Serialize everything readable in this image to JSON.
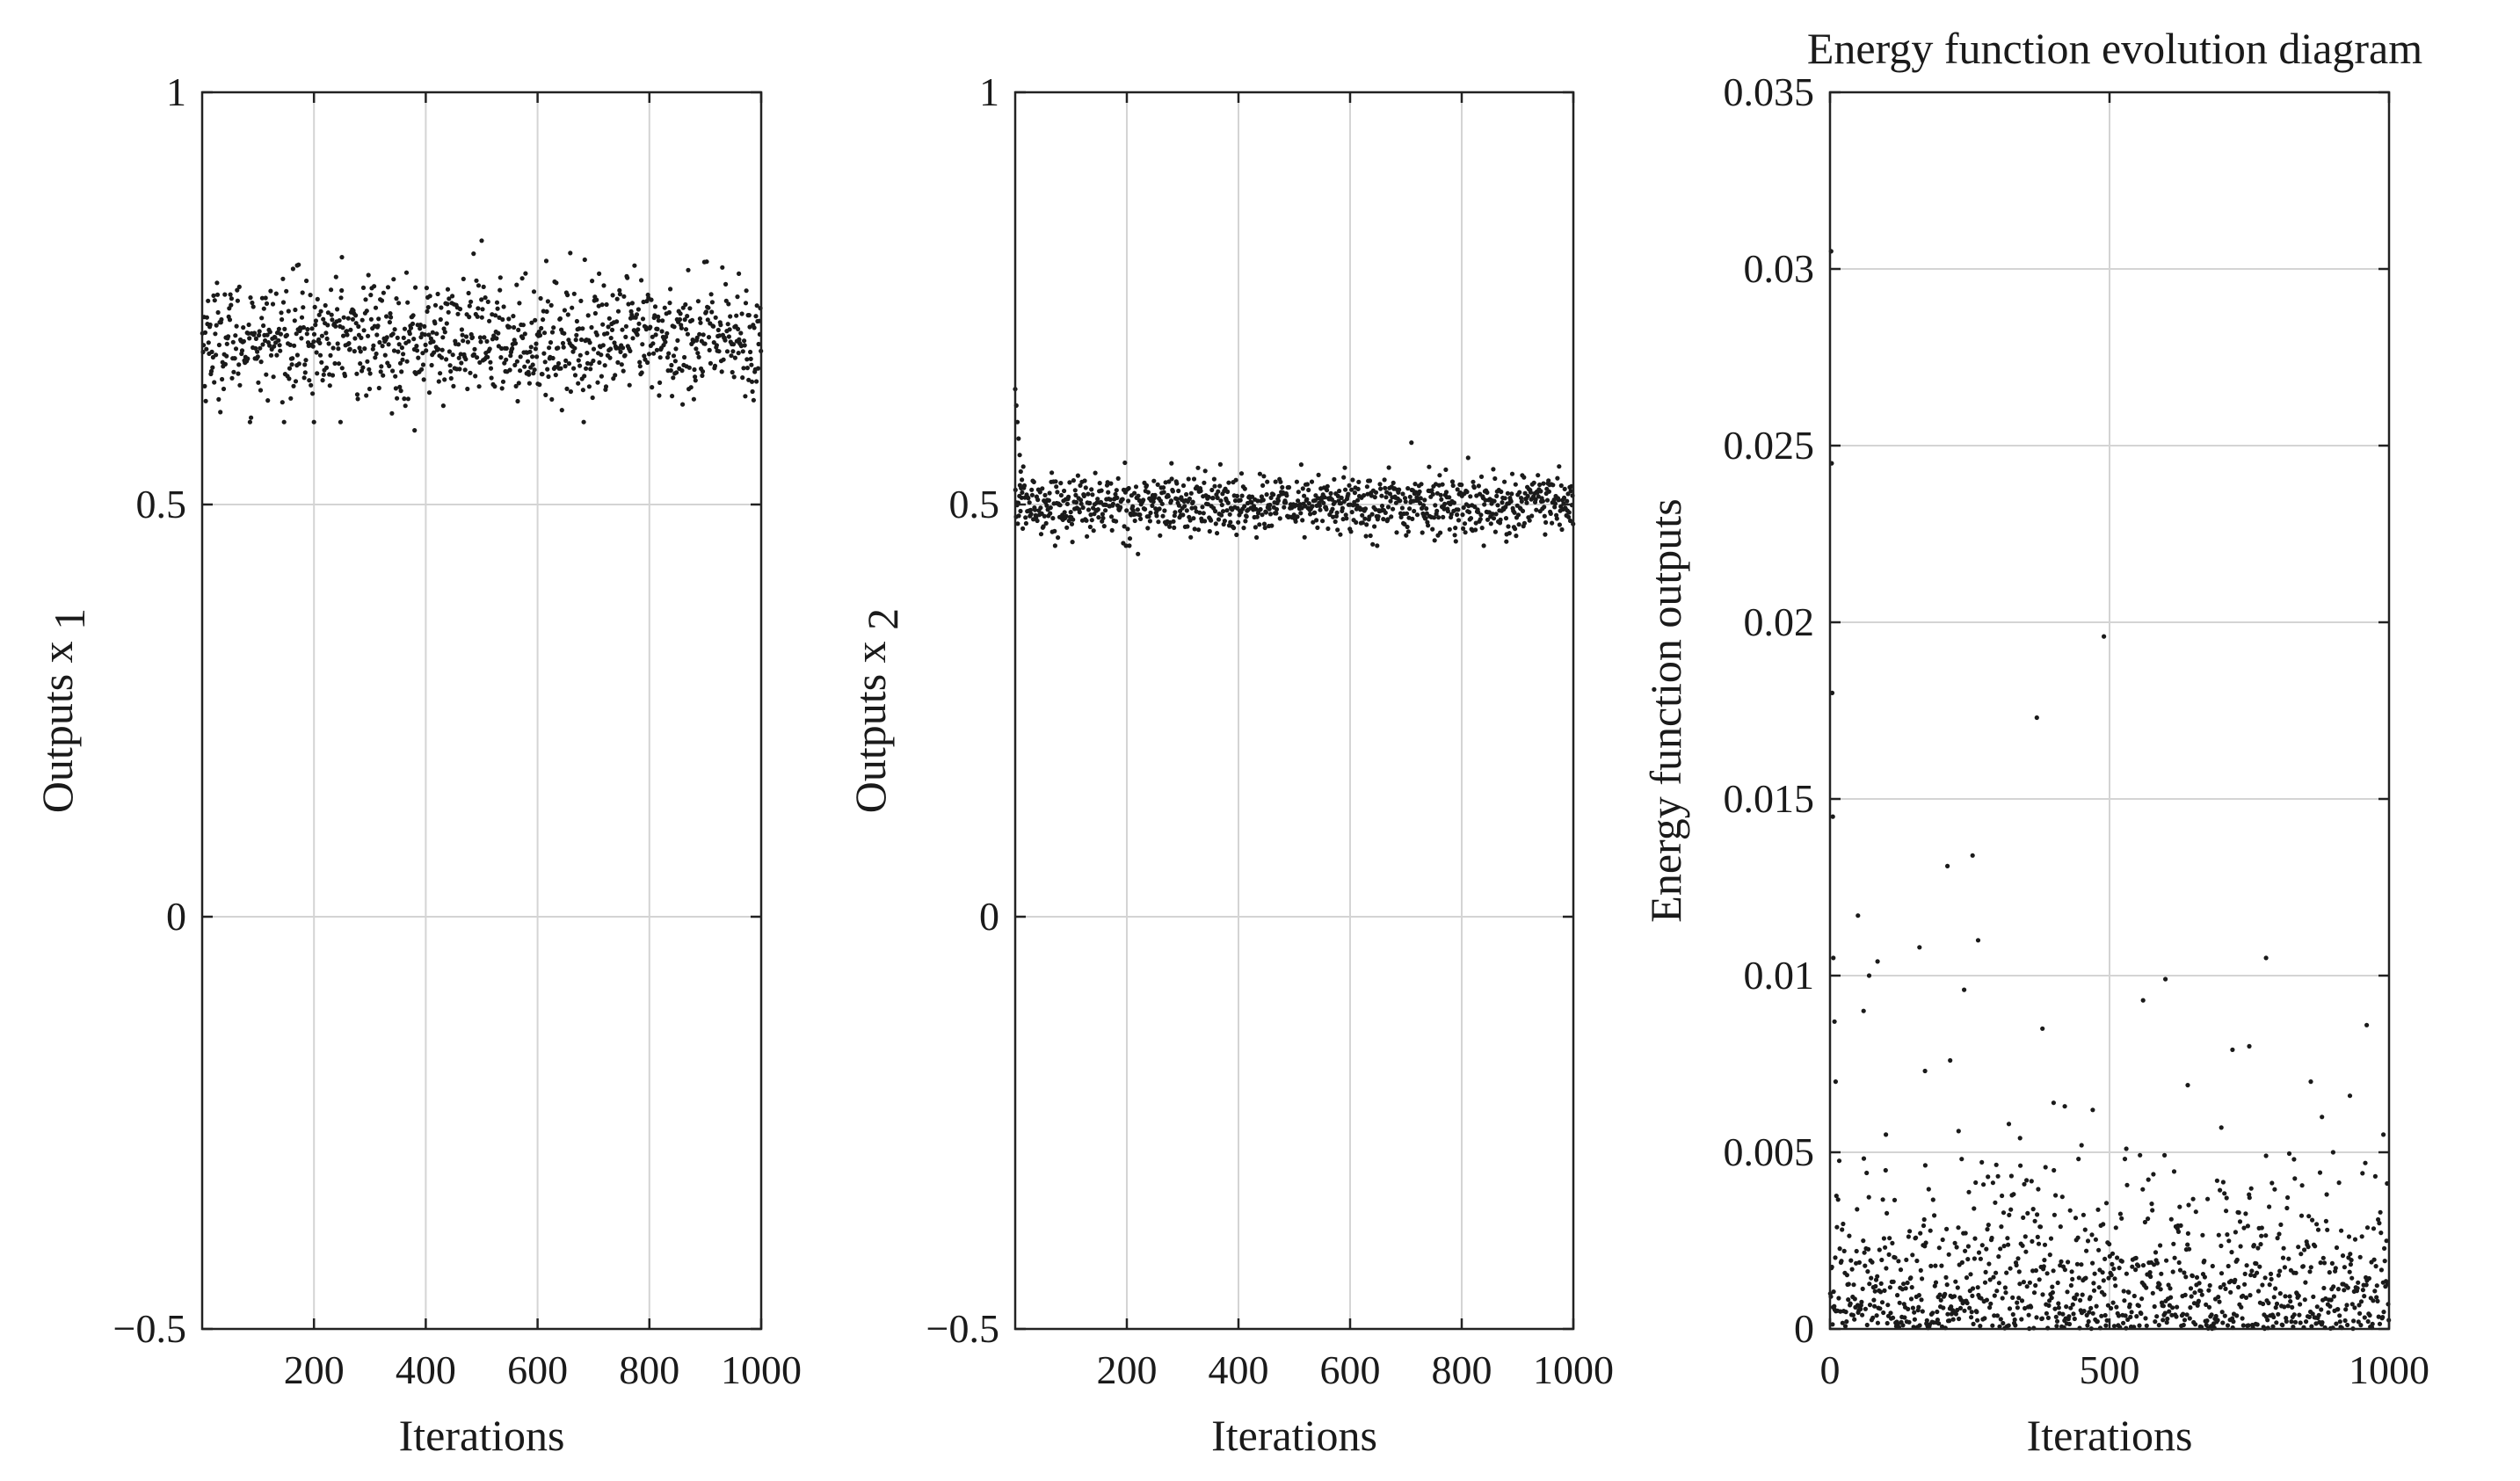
{
  "chart_data": [
    {
      "type": "scatter",
      "title": "",
      "xlabel": "Iterations",
      "ylabel": "Outputs x",
      "ylabel_subscript": "1",
      "xlim": [
        0,
        1000
      ],
      "ylim": [
        -0.5,
        1
      ],
      "xticks": [
        200,
        400,
        600,
        800,
        1000
      ],
      "yticks": [
        -0.5,
        0,
        0.5,
        1
      ],
      "xtick_labels": [
        "200",
        "400",
        "600",
        "800",
        "1000"
      ],
      "ytick_labels": [
        "−0.5",
        "0",
        "0.5",
        "1"
      ],
      "grid": true,
      "series": [
        {
          "name": "x1",
          "n_points": 1000,
          "x_range": [
            0,
            1000
          ],
          "mean": 0.7,
          "spread": 0.035,
          "y_range": [
            0.59,
            0.82
          ],
          "outliers": [
            [
              250,
              0.8
            ],
            [
              500,
              0.82
            ],
            [
              380,
              0.59
            ],
            [
              200,
              0.6
            ],
            [
              170,
              0.79
            ],
            [
              710,
              0.78
            ],
            [
              960,
              0.78
            ]
          ]
        }
      ]
    },
    {
      "type": "scatter",
      "title": "",
      "xlabel": "Iterations",
      "ylabel": "Outputs x",
      "ylabel_subscript": "2",
      "xlim": [
        0,
        1000
      ],
      "ylim": [
        -0.5,
        1
      ],
      "xticks": [
        200,
        400,
        600,
        800,
        1000
      ],
      "yticks": [
        -0.5,
        0,
        0.5,
        1
      ],
      "xtick_labels": [
        "200",
        "400",
        "600",
        "800",
        "1000"
      ],
      "ytick_labels": [
        "−0.5",
        "0",
        "0.5",
        "1"
      ],
      "grid": true,
      "series": [
        {
          "name": "x2",
          "n_points": 1000,
          "x_range": [
            0,
            1000
          ],
          "mean": 0.5,
          "spread": 0.018,
          "y_range": [
            0.44,
            0.57
          ],
          "initial_transient": [
            [
              0,
              0.64
            ],
            [
              2,
              0.62
            ],
            [
              4,
              0.6
            ],
            [
              6,
              0.58
            ],
            [
              8,
              0.56
            ],
            [
              10,
              0.54
            ],
            [
              12,
              0.53
            ]
          ],
          "outliers": [
            [
              710,
              0.575
            ],
            [
              280,
              0.55
            ],
            [
              220,
              0.44
            ],
            [
              880,
              0.455
            ]
          ]
        }
      ]
    },
    {
      "type": "scatter",
      "title": "Energy function evolution diagram",
      "xlabel": "Iterations",
      "ylabel": "Energy function outputs",
      "xlim": [
        0,
        1000
      ],
      "ylim": [
        0,
        0.035
      ],
      "xticks": [
        0,
        500,
        1000
      ],
      "yticks": [
        0,
        0.005,
        0.01,
        0.015,
        0.02,
        0.025,
        0.03,
        0.035
      ],
      "xtick_labels": [
        "0",
        "500",
        "1000"
      ],
      "ytick_labels": [
        "0",
        "0.005",
        "0.01",
        "0.015",
        "0.02",
        "0.025",
        "0.03",
        "0.035"
      ],
      "grid": true,
      "series": [
        {
          "name": "energy",
          "n_points": 1000,
          "x_range": [
            0,
            1000
          ],
          "typical_range": [
            0,
            0.005
          ],
          "decay_scale": 0.0016,
          "outliers": [
            [
              2,
              0.0305
            ],
            [
              3,
              0.0245
            ],
            [
              4,
              0.018
            ],
            [
              5,
              0.0145
            ],
            [
              6,
              0.0105
            ],
            [
              8,
              0.0087
            ],
            [
              10,
              0.007
            ],
            [
              490,
              0.0196
            ],
            [
              370,
              0.0173
            ],
            [
              210,
              0.0131
            ],
            [
              255,
              0.0134
            ],
            [
              50,
              0.0117
            ],
            [
              265,
              0.011
            ],
            [
              160,
              0.0108
            ],
            [
              85,
              0.0104
            ],
            [
              70,
              0.01
            ],
            [
              600,
              0.0099
            ],
            [
              560,
              0.0093
            ],
            [
              780,
              0.0105
            ],
            [
              240,
              0.0096
            ],
            [
              60,
              0.009
            ],
            [
              960,
              0.0086
            ],
            [
              380,
              0.0085
            ],
            [
              750,
              0.008
            ],
            [
              720,
              0.0079
            ],
            [
              215,
              0.0076
            ],
            [
              170,
              0.0073
            ],
            [
              640,
              0.0069
            ],
            [
              860,
              0.007
            ],
            [
              930,
              0.0066
            ],
            [
              400,
              0.0064
            ],
            [
              420,
              0.0063
            ],
            [
              470,
              0.0062
            ],
            [
              880,
              0.006
            ],
            [
              320,
              0.0058
            ],
            [
              700,
              0.0057
            ],
            [
              990,
              0.0055
            ],
            [
              100,
              0.0055
            ],
            [
              340,
              0.0054
            ],
            [
              230,
              0.0056
            ],
            [
              450,
              0.0052
            ],
            [
              530,
              0.0051
            ],
            [
              780,
              0.0049
            ],
            [
              830,
              0.0048
            ],
            [
              900,
              0.005
            ]
          ]
        }
      ]
    }
  ]
}
